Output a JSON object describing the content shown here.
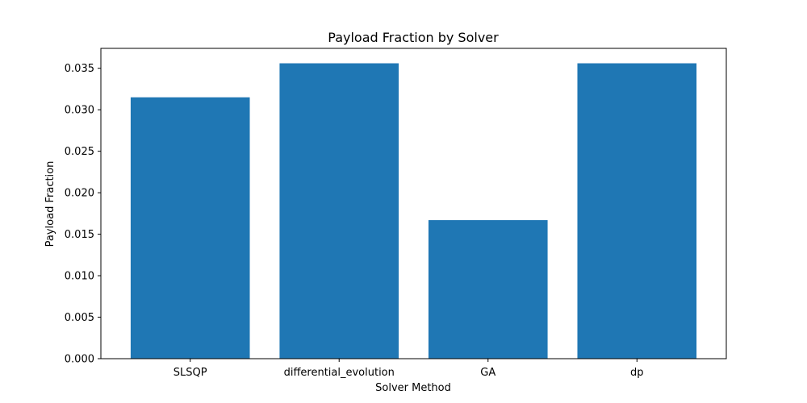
{
  "chart_data": {
    "type": "bar",
    "title": "Payload Fraction by Solver",
    "xlabel": "Solver Method",
    "ylabel": "Payload Fraction",
    "categories": [
      "SLSQP",
      "differential_evolution",
      "GA",
      "dp"
    ],
    "values": [
      0.0315,
      0.0356,
      0.0167,
      0.0356
    ],
    "ylim": [
      0,
      0.0374
    ],
    "yticks": [
      0.0,
      0.005,
      0.01,
      0.015,
      0.02,
      0.025,
      0.03,
      0.035
    ],
    "ytick_labels": [
      "0.000",
      "0.005",
      "0.010",
      "0.015",
      "0.020",
      "0.025",
      "0.030",
      "0.035"
    ],
    "grid": false,
    "legend": "none",
    "bar_color": "#1f77b4"
  }
}
